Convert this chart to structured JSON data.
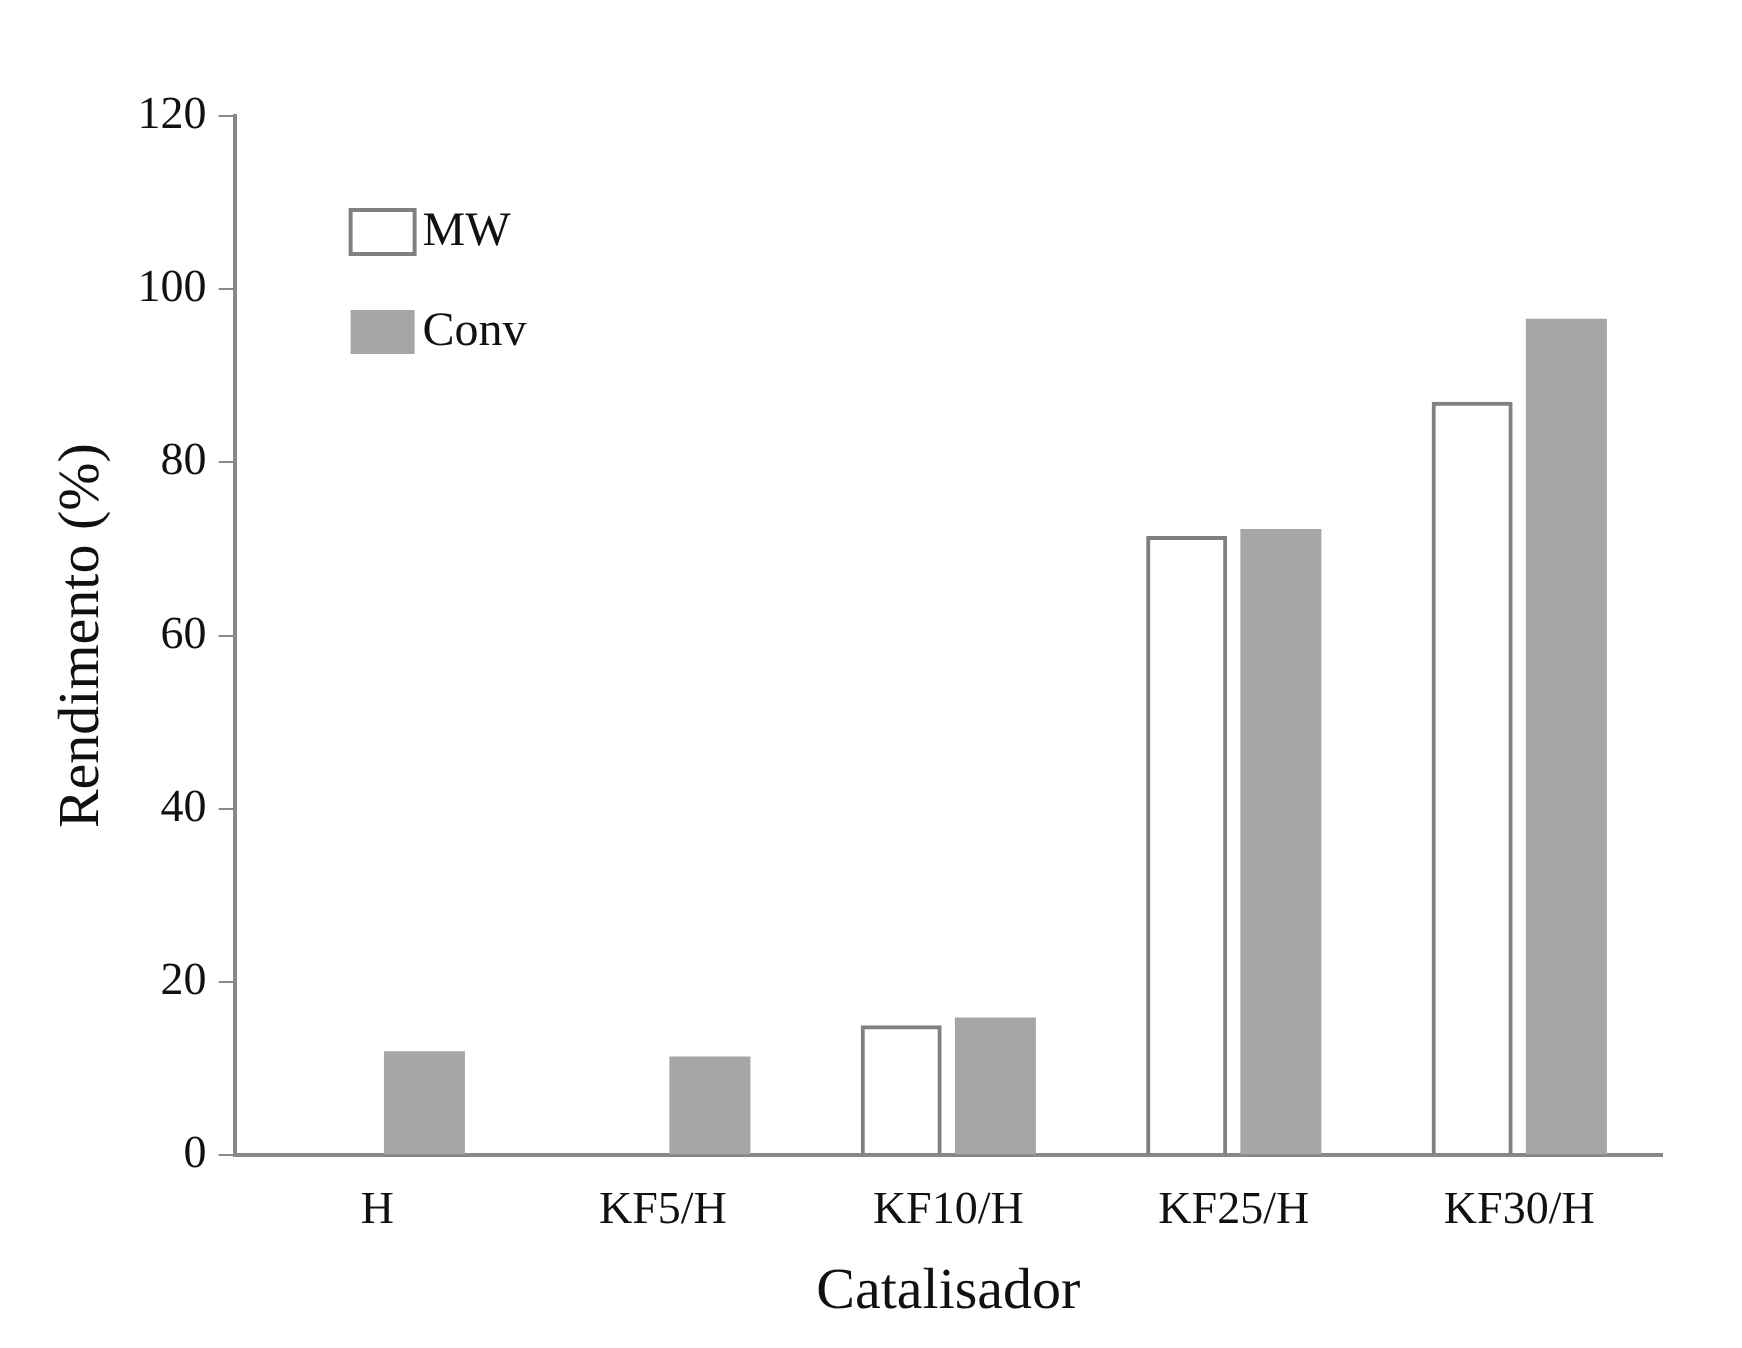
{
  "chart_data": {
    "type": "bar",
    "xlabel": "Catalisador",
    "ylabel": "Rendimento (%)",
    "categories": [
      "H",
      "KF5/H",
      "KF10/H",
      "KF25/H",
      "KF30/H"
    ],
    "series": [
      {
        "name": "MW",
        "color": "#808080",
        "values": [
          0,
          0,
          15,
          71.5,
          87
        ]
      },
      {
        "name": "Conv",
        "color": "#a6a6a6",
        "values": [
          12,
          11.4,
          15.9,
          72.3,
          96.6
        ]
      }
    ],
    "ylim": [
      0,
      120
    ],
    "yticks": [
      0,
      20,
      40,
      60,
      80,
      100,
      120
    ],
    "grid": false,
    "legend": "top left"
  }
}
